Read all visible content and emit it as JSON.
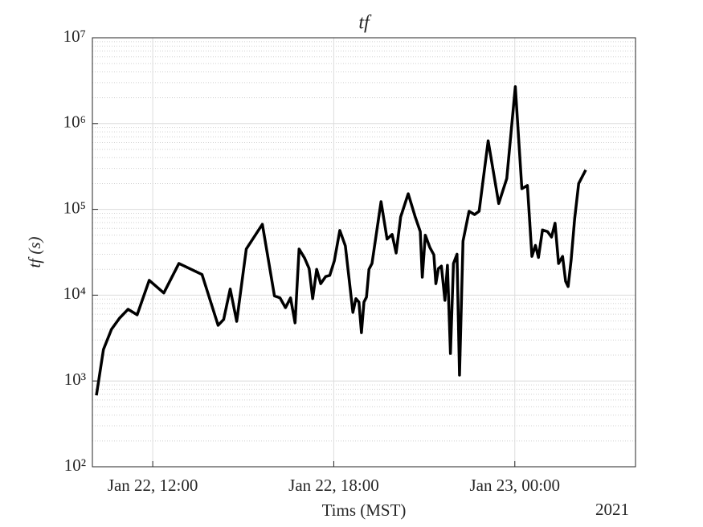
{
  "chart_data": {
    "type": "line",
    "title": "tf",
    "xlabel": "Tims (MST)",
    "ylabel": "tf (s)",
    "x_secondary_label": "2021",
    "log_y": true,
    "grid": true,
    "minor_grid": true,
    "xlim": [
      "2021-01-22T10:00",
      "2021-01-23T04:00"
    ],
    "xticks": [
      {
        "value": "2021-01-22T12:00",
        "label": "Jan 22, 12:00"
      },
      {
        "value": "2021-01-22T18:00",
        "label": "Jan 22, 18:00"
      },
      {
        "value": "2021-01-23T00:00",
        "label": "Jan 23, 00:00"
      }
    ],
    "ylim": [
      100,
      10000000
    ],
    "yticks": [
      {
        "value": 100,
        "label": "10²"
      },
      {
        "value": 1000,
        "label": "10³"
      },
      {
        "value": 10000,
        "label": "10⁴"
      },
      {
        "value": 100000,
        "label": "10⁵"
      },
      {
        "value": 1000000,
        "label": "10⁶"
      },
      {
        "value": 10000000,
        "label": "10⁷"
      }
    ],
    "x": [
      "2021-01-22T10:08",
      "2021-01-22T10:22",
      "2021-01-22T10:38",
      "2021-01-22T10:54",
      "2021-01-22T11:11",
      "2021-01-22T11:29",
      "2021-01-22T11:53",
      "2021-01-22T12:22",
      "2021-01-22T12:52",
      "2021-01-22T13:38",
      "2021-01-22T14:10",
      "2021-01-22T14:21",
      "2021-01-22T14:34",
      "2021-01-22T14:47",
      "2021-01-22T15:06",
      "2021-01-22T15:38",
      "2021-01-22T16:02",
      "2021-01-22T16:13",
      "2021-01-22T16:24",
      "2021-01-22T16:34",
      "2021-01-22T16:43",
      "2021-01-22T16:51",
      "2021-01-22T17:02",
      "2021-01-22T17:11",
      "2021-01-22T17:18",
      "2021-01-22T17:26",
      "2021-01-22T17:34",
      "2021-01-22T17:44",
      "2021-01-22T17:52",
      "2021-01-22T18:01",
      "2021-01-22T18:12",
      "2021-01-22T18:23",
      "2021-01-22T18:38",
      "2021-01-22T18:44",
      "2021-01-22T18:50",
      "2021-01-22T18:55",
      "2021-01-22T19:00",
      "2021-01-22T19:05",
      "2021-01-22T19:10",
      "2021-01-22T19:16",
      "2021-01-22T19:34",
      "2021-01-22T19:46",
      "2021-01-22T19:56",
      "2021-01-22T20:04",
      "2021-01-22T20:13",
      "2021-01-22T20:28",
      "2021-01-22T20:42",
      "2021-01-22T20:52",
      "2021-01-22T20:56",
      "2021-01-22T21:02",
      "2021-01-22T21:11",
      "2021-01-22T21:19",
      "2021-01-22T21:23",
      "2021-01-22T21:28",
      "2021-01-22T21:34",
      "2021-01-22T21:41",
      "2021-01-22T21:46",
      "2021-01-22T21:52",
      "2021-01-22T21:58",
      "2021-01-22T22:05",
      "2021-01-22T22:10",
      "2021-01-22T22:17",
      "2021-01-22T22:29",
      "2021-01-22T22:40",
      "2021-01-22T22:49",
      "2021-01-22T23:07",
      "2021-01-22T23:28",
      "2021-01-22T23:44",
      "2021-01-23T00:01",
      "2021-01-23T00:14",
      "2021-01-23T00:25",
      "2021-01-23T00:34",
      "2021-01-23T00:41",
      "2021-01-23T00:47",
      "2021-01-23T00:55",
      "2021-01-23T01:05",
      "2021-01-23T01:13",
      "2021-01-23T01:20",
      "2021-01-23T01:27",
      "2021-01-23T01:35",
      "2021-01-23T01:41",
      "2021-01-23T01:46",
      "2021-01-23T01:52",
      "2021-01-23T01:59",
      "2021-01-23T02:07",
      "2021-01-23T02:21"
    ],
    "series": [
      {
        "name": "tf",
        "color": "#000000",
        "values": [
          680,
          2330,
          4000,
          5400,
          6850,
          5900,
          14900,
          10600,
          23400,
          17400,
          4450,
          5200,
          11800,
          4950,
          34500,
          67000,
          9800,
          9300,
          7150,
          9300,
          4750,
          34500,
          27000,
          20400,
          9100,
          20000,
          13600,
          16500,
          17000,
          25000,
          56800,
          37500,
          6300,
          9100,
          8300,
          3650,
          8300,
          9500,
          20000,
          23400,
          123000,
          45000,
          51000,
          31000,
          81500,
          152000,
          81500,
          55000,
          16200,
          50000,
          36000,
          29500,
          13600,
          20400,
          21800,
          8700,
          22300,
          2090,
          23400,
          30000,
          1170,
          42700,
          95000,
          87000,
          95000,
          630000,
          117000,
          229000,
          2690000,
          174000,
          190000,
          28300,
          38000,
          27500,
          57500,
          55000,
          47500,
          69000,
          23400,
          28300,
          14500,
          12600,
          25700,
          78000,
          200000,
          288000
        ]
      }
    ]
  }
}
